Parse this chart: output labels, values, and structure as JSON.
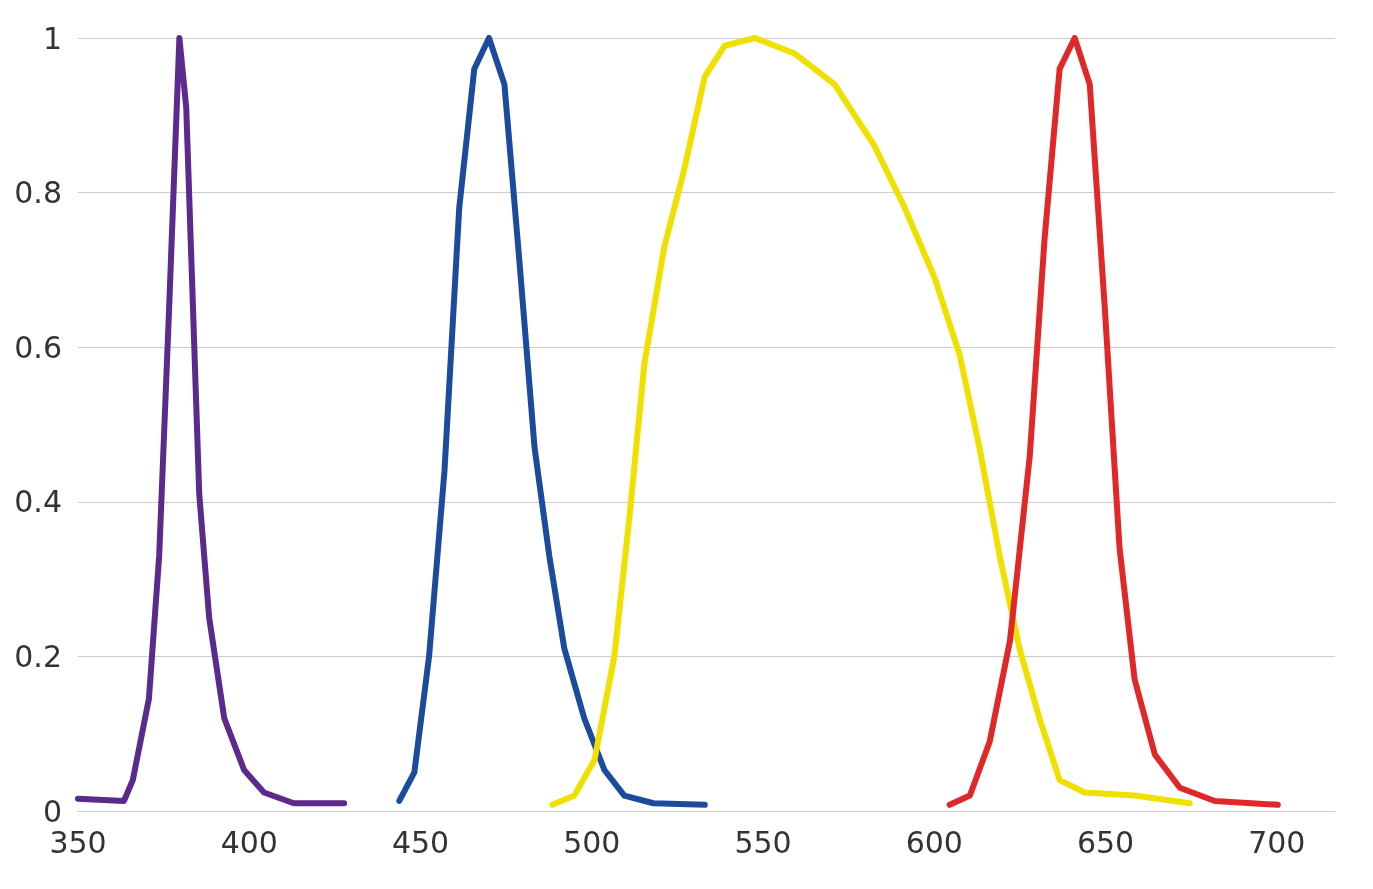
{
  "chart_data": {
    "type": "line",
    "xlim": [
      350,
      717
    ],
    "xticks": [
      350,
      400,
      450,
      500,
      550,
      600,
      650,
      700
    ],
    "ylim": [
      0,
      1
    ],
    "yticks": [
      0,
      0.2,
      0.4,
      0.6,
      0.8,
      1
    ],
    "grid": "y",
    "series": [
      {
        "color": "#5b2a8c",
        "x": [
          350,
          363.4,
          366,
          370.7,
          373.7,
          376.6,
          379.6,
          381.6,
          385.4,
          388.3,
          392.7,
          398.5,
          404.3,
          413,
          427.7
        ],
        "values": [
          0.016,
          0.013,
          0.04,
          0.145,
          0.33,
          0.65,
          1.0,
          0.91,
          0.41,
          0.25,
          0.12,
          0.053,
          0.024,
          0.01,
          0.01
        ]
      },
      {
        "color": "#1a4b9c",
        "x": [
          443.8,
          448.2,
          452.5,
          457,
          461.3,
          465.7,
          470,
          474.5,
          478.9,
          483.3,
          487.6,
          492,
          497.8,
          503.7,
          509.5,
          518,
          533
        ],
        "values": [
          0.013,
          0.05,
          0.2,
          0.44,
          0.78,
          0.96,
          1.0,
          0.94,
          0.71,
          0.47,
          0.33,
          0.21,
          0.12,
          0.053,
          0.02,
          0.01,
          0.008
        ]
      },
      {
        "color": "#f0e000",
        "x": [
          488.5,
          494.9,
          500.8,
          506.6,
          511,
          515.4,
          521.2,
          527,
          533,
          538.8,
          547.6,
          559.2,
          570.9,
          582.6,
          591.4,
          600.1,
          607.4,
          613.2,
          619.1,
          624.9,
          630.7,
          636.6,
          643.9,
          658.5,
          674.6
        ],
        "values": [
          0.008,
          0.02,
          0.066,
          0.2,
          0.38,
          0.58,
          0.73,
          0.83,
          0.95,
          0.99,
          1.0,
          0.98,
          0.94,
          0.86,
          0.78,
          0.69,
          0.59,
          0.47,
          0.33,
          0.21,
          0.12,
          0.04,
          0.024,
          0.02,
          0.01
        ]
      },
      {
        "color": "#e02828",
        "x": [
          604.5,
          610.4,
          616.2,
          622.1,
          627.9,
          632.2,
          636.6,
          641,
          645.4,
          649.8,
          654.1,
          658.5,
          664.4,
          671.7,
          681.9,
          700.3
        ],
        "values": [
          0.008,
          0.02,
          0.09,
          0.22,
          0.46,
          0.74,
          0.96,
          1.0,
          0.94,
          0.65,
          0.34,
          0.17,
          0.073,
          0.03,
          0.013,
          0.008
        ]
      }
    ]
  }
}
